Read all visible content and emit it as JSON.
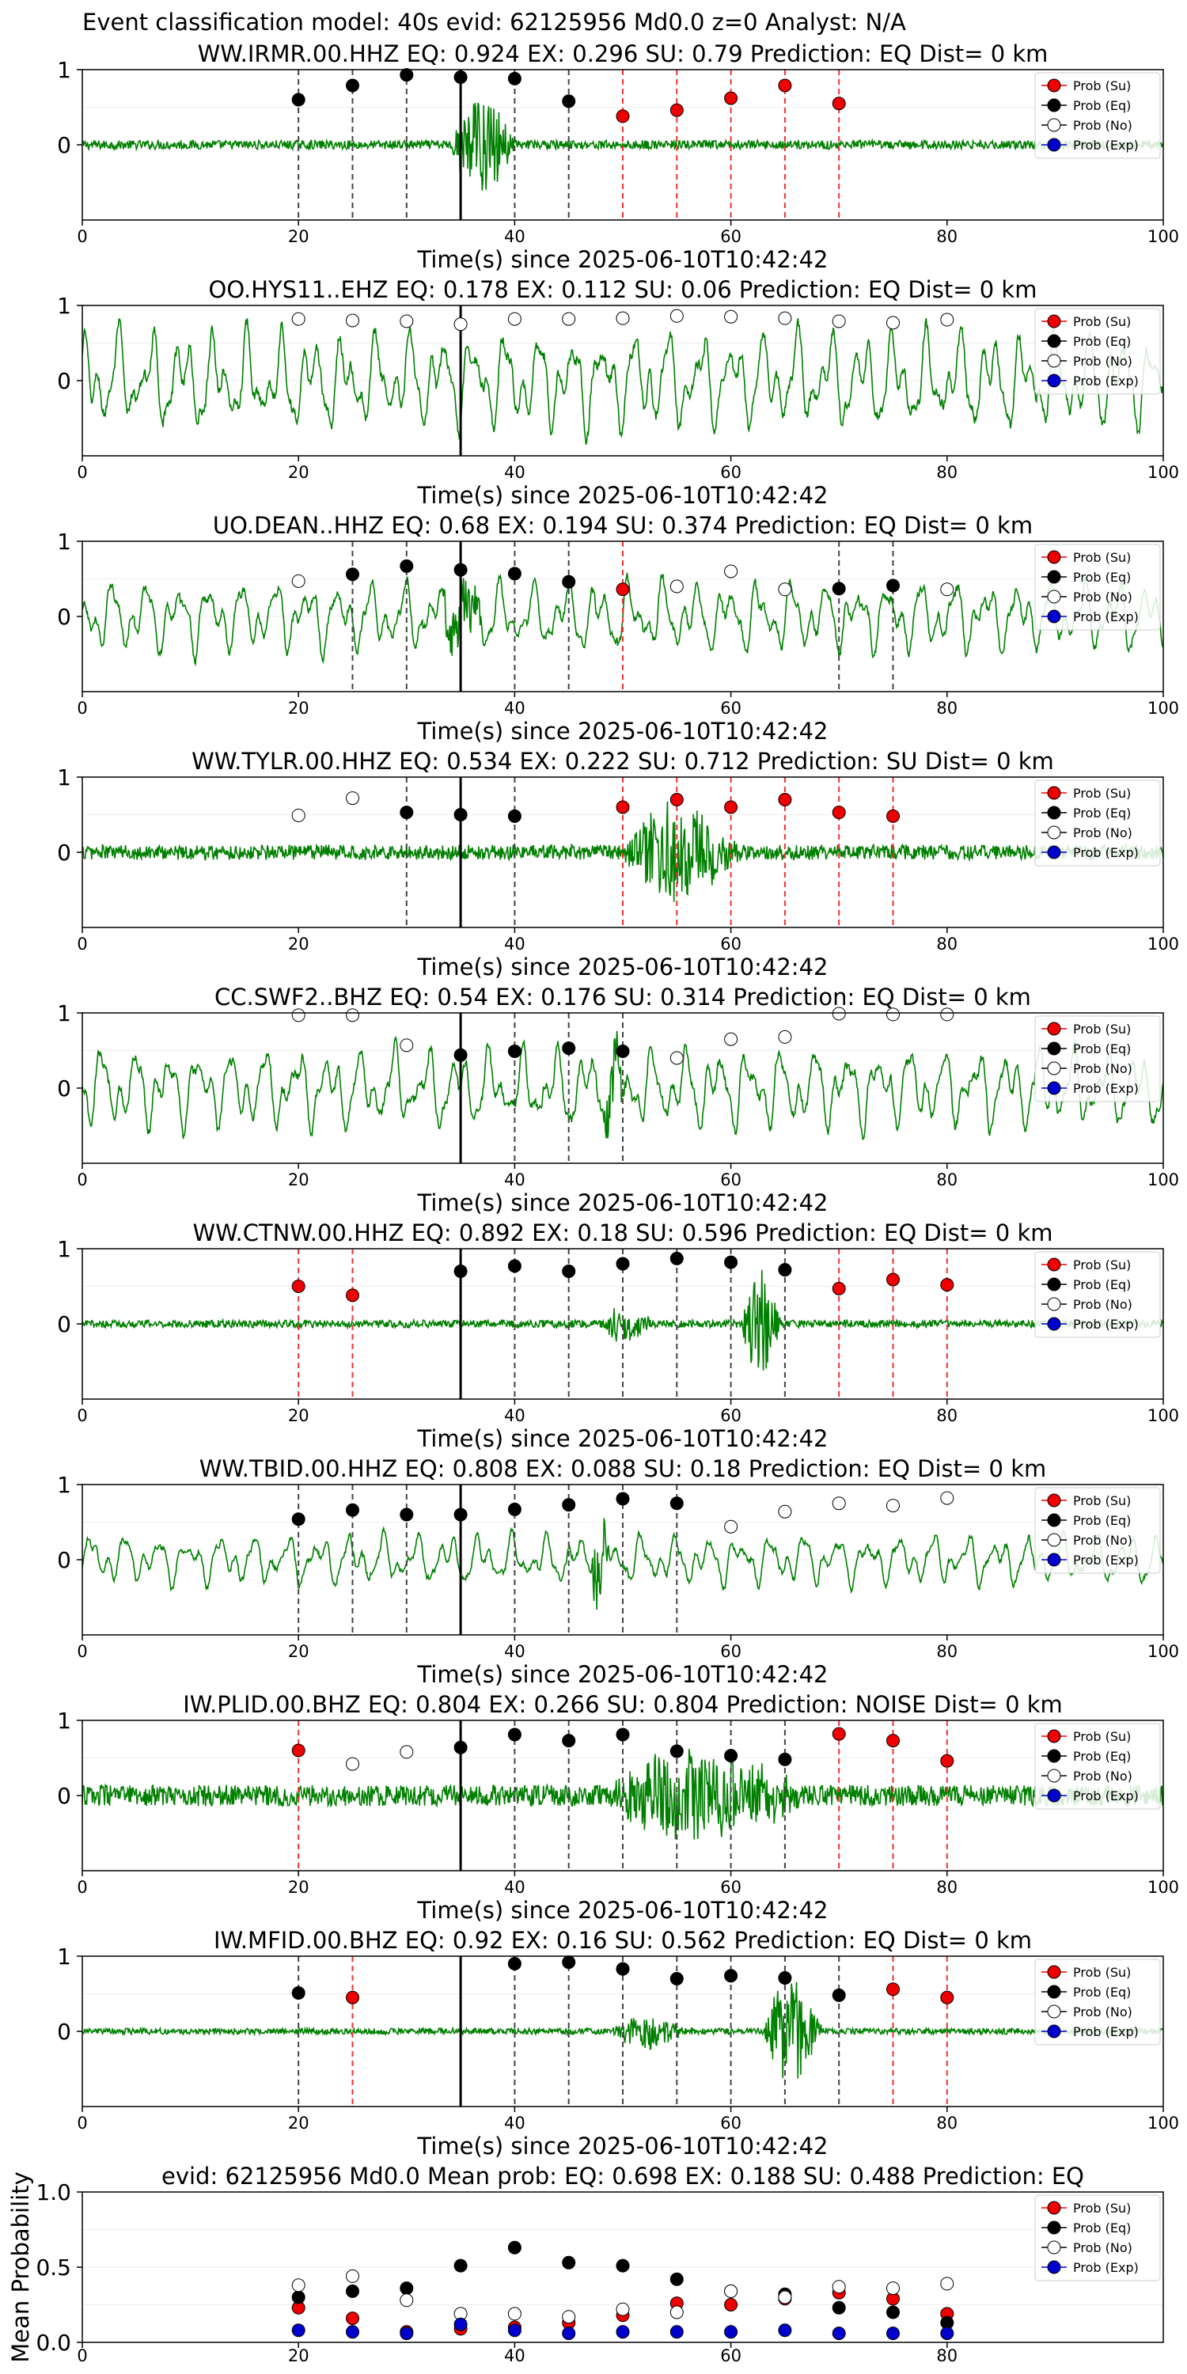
{
  "suptitle": "Event classification model: 40s evid: 62125956 Md0.0 z=0 Analyst: N/A",
  "legend_entries": [
    "Prob (Su)",
    "Prob (Eq)",
    "Prob (No)",
    "Prob (Exp)"
  ],
  "colors": {
    "su": "#ee0000",
    "eq": "#000000",
    "no": "#ffffff",
    "exp": "#0000cc",
    "trace": "#008000",
    "vline_su": "#ee3333",
    "vline_eq": "#444444"
  },
  "chart_data": [
    {
      "type": "line",
      "title": "WW.IRMR.00.HHZ   EQ: 0.924  EX: 0.296  SU: 0.79   Prediction: EQ    Dist= 0 km",
      "xlabel": "Time(s) since 2025-06-10T10:42:42",
      "xlim": [
        0,
        100
      ],
      "ylim": [
        -1,
        1
      ],
      "xticks": [
        "0",
        "20",
        "40",
        "60",
        "80",
        "100"
      ],
      "yticks": [
        "1",
        "0"
      ],
      "pick_time": 35,
      "trace_style": "quake",
      "amp": 0.06,
      "burst": [
        34,
        44,
        0.85
      ],
      "burst2": null,
      "points": [
        {
          "t": 20,
          "p": 0.6,
          "cls": "eq"
        },
        {
          "t": 25,
          "p": 0.79,
          "cls": "eq"
        },
        {
          "t": 30,
          "p": 0.93,
          "cls": "eq"
        },
        {
          "t": 35,
          "p": 0.9,
          "cls": "eq"
        },
        {
          "t": 40,
          "p": 0.88,
          "cls": "eq"
        },
        {
          "t": 45,
          "p": 0.58,
          "cls": "eq"
        },
        {
          "t": 50,
          "p": 0.38,
          "cls": "su"
        },
        {
          "t": 55,
          "p": 0.46,
          "cls": "su"
        },
        {
          "t": 60,
          "p": 0.62,
          "cls": "su"
        },
        {
          "t": 65,
          "p": 0.79,
          "cls": "su"
        },
        {
          "t": 70,
          "p": 0.55,
          "cls": "su"
        }
      ]
    },
    {
      "type": "line",
      "title": "OO.HYS11..EHZ   EQ: 0.178  EX: 0.112  SU: 0.06   Prediction: EQ    Dist= 0 km",
      "xlabel": "Time(s) since 2025-06-10T10:42:42",
      "xlim": [
        0,
        100
      ],
      "ylim": [
        -1,
        1
      ],
      "xticks": [
        "0",
        "20",
        "40",
        "60",
        "80",
        "100"
      ],
      "yticks": [
        "1",
        "0"
      ],
      "pick_time": 35,
      "trace_style": "noise",
      "amp": 0.55,
      "burst": null,
      "burst2": null,
      "points": [
        {
          "t": 20,
          "p": 0.82,
          "cls": "no"
        },
        {
          "t": 25,
          "p": 0.8,
          "cls": "no"
        },
        {
          "t": 30,
          "p": 0.79,
          "cls": "no"
        },
        {
          "t": 35,
          "p": 0.75,
          "cls": "no"
        },
        {
          "t": 40,
          "p": 0.82,
          "cls": "no"
        },
        {
          "t": 45,
          "p": 0.82,
          "cls": "no"
        },
        {
          "t": 50,
          "p": 0.83,
          "cls": "no"
        },
        {
          "t": 55,
          "p": 0.86,
          "cls": "no"
        },
        {
          "t": 60,
          "p": 0.85,
          "cls": "no"
        },
        {
          "t": 65,
          "p": 0.83,
          "cls": "no"
        },
        {
          "t": 70,
          "p": 0.79,
          "cls": "no"
        },
        {
          "t": 75,
          "p": 0.77,
          "cls": "no"
        },
        {
          "t": 80,
          "p": 0.81,
          "cls": "no"
        }
      ]
    },
    {
      "type": "line",
      "title": "UO.DEAN..HHZ   EQ: 0.68  EX: 0.194  SU: 0.374   Prediction: EQ    Dist= 0 km",
      "xlabel": "Time(s) since 2025-06-10T10:42:42",
      "xlim": [
        0,
        100
      ],
      "ylim": [
        -1,
        1
      ],
      "xticks": [
        "0",
        "20",
        "40",
        "60",
        "80",
        "100"
      ],
      "yticks": [
        "1",
        "0"
      ],
      "pick_time": 35,
      "trace_style": "noise",
      "amp": 0.4,
      "burst": [
        33,
        40,
        0.6
      ],
      "burst2": null,
      "points": [
        {
          "t": 20,
          "p": 0.47,
          "cls": "no"
        },
        {
          "t": 25,
          "p": 0.56,
          "cls": "eq"
        },
        {
          "t": 30,
          "p": 0.67,
          "cls": "eq"
        },
        {
          "t": 35,
          "p": 0.62,
          "cls": "eq"
        },
        {
          "t": 40,
          "p": 0.57,
          "cls": "eq"
        },
        {
          "t": 45,
          "p": 0.46,
          "cls": "eq"
        },
        {
          "t": 50,
          "p": 0.36,
          "cls": "su"
        },
        {
          "t": 55,
          "p": 0.4,
          "cls": "no"
        },
        {
          "t": 60,
          "p": 0.6,
          "cls": "no"
        },
        {
          "t": 65,
          "p": 0.36,
          "cls": "no"
        },
        {
          "t": 70,
          "p": 0.37,
          "cls": "eq"
        },
        {
          "t": 75,
          "p": 0.41,
          "cls": "eq"
        },
        {
          "t": 80,
          "p": 0.36,
          "cls": "no"
        }
      ]
    },
    {
      "type": "line",
      "title": "WW.TYLR.00.HHZ   EQ: 0.534  EX: 0.222  SU: 0.712   Prediction: SU    Dist= 0 km",
      "xlabel": "Time(s) since 2025-06-10T10:42:42",
      "xlim": [
        0,
        100
      ],
      "ylim": [
        -1,
        1
      ],
      "xticks": [
        "0",
        "20",
        "40",
        "60",
        "80",
        "100"
      ],
      "yticks": [
        "1",
        "0"
      ],
      "pick_time": 35,
      "trace_style": "quake",
      "amp": 0.1,
      "burst": [
        50,
        68,
        0.85
      ],
      "burst2": null,
      "points": [
        {
          "t": 20,
          "p": 0.49,
          "cls": "no"
        },
        {
          "t": 25,
          "p": 0.72,
          "cls": "no"
        },
        {
          "t": 30,
          "p": 0.53,
          "cls": "eq"
        },
        {
          "t": 35,
          "p": 0.5,
          "cls": "eq"
        },
        {
          "t": 40,
          "p": 0.48,
          "cls": "eq"
        },
        {
          "t": 50,
          "p": 0.6,
          "cls": "su"
        },
        {
          "t": 55,
          "p": 0.7,
          "cls": "su"
        },
        {
          "t": 60,
          "p": 0.6,
          "cls": "su"
        },
        {
          "t": 65,
          "p": 0.7,
          "cls": "su"
        },
        {
          "t": 70,
          "p": 0.53,
          "cls": "su"
        },
        {
          "t": 75,
          "p": 0.48,
          "cls": "su"
        }
      ]
    },
    {
      "type": "line",
      "title": "CC.SWF2..BHZ   EQ: 0.54  EX: 0.176  SU: 0.314   Prediction: EQ    Dist= 0 km",
      "xlabel": "Time(s) since 2025-06-10T10:42:42",
      "xlim": [
        0,
        100
      ],
      "ylim": [
        -1,
        1
      ],
      "xticks": [
        "0",
        "20",
        "40",
        "60",
        "80",
        "100"
      ],
      "yticks": [
        "1",
        "0"
      ],
      "pick_time": 35,
      "trace_style": "noise",
      "amp": 0.45,
      "burst": [
        48,
        52,
        0.5
      ],
      "burst2": null,
      "points": [
        {
          "t": 20,
          "p": 0.97,
          "cls": "no"
        },
        {
          "t": 25,
          "p": 0.97,
          "cls": "no"
        },
        {
          "t": 30,
          "p": 0.57,
          "cls": "no"
        },
        {
          "t": 35,
          "p": 0.44,
          "cls": "eq"
        },
        {
          "t": 40,
          "p": 0.49,
          "cls": "eq"
        },
        {
          "t": 45,
          "p": 0.53,
          "cls": "eq"
        },
        {
          "t": 50,
          "p": 0.49,
          "cls": "eq"
        },
        {
          "t": 55,
          "p": 0.4,
          "cls": "no"
        },
        {
          "t": 60,
          "p": 0.65,
          "cls": "no"
        },
        {
          "t": 65,
          "p": 0.68,
          "cls": "no"
        },
        {
          "t": 70,
          "p": 0.99,
          "cls": "no"
        },
        {
          "t": 75,
          "p": 0.98,
          "cls": "no"
        },
        {
          "t": 80,
          "p": 0.98,
          "cls": "no"
        }
      ]
    },
    {
      "type": "line",
      "title": "WW.CTNW.00.HHZ   EQ: 0.892  EX: 0.18  SU: 0.596   Prediction: EQ    Dist= 0 km",
      "xlabel": "Time(s) since 2025-06-10T10:42:42",
      "xlim": [
        0,
        100
      ],
      "ylim": [
        -1,
        1
      ],
      "xticks": [
        "0",
        "20",
        "40",
        "60",
        "80",
        "100"
      ],
      "yticks": [
        "1",
        "0"
      ],
      "pick_time": 35,
      "trace_style": "quake",
      "amp": 0.05,
      "burst": [
        48,
        56,
        0.3
      ],
      "burst2": [
        61,
        67,
        0.95
      ],
      "points": [
        {
          "t": 20,
          "p": 0.5,
          "cls": "su"
        },
        {
          "t": 25,
          "p": 0.38,
          "cls": "su"
        },
        {
          "t": 35,
          "p": 0.7,
          "cls": "eq"
        },
        {
          "t": 40,
          "p": 0.77,
          "cls": "eq"
        },
        {
          "t": 45,
          "p": 0.7,
          "cls": "eq"
        },
        {
          "t": 50,
          "p": 0.8,
          "cls": "eq"
        },
        {
          "t": 55,
          "p": 0.87,
          "cls": "eq"
        },
        {
          "t": 60,
          "p": 0.82,
          "cls": "eq"
        },
        {
          "t": 65,
          "p": 0.72,
          "cls": "eq"
        },
        {
          "t": 70,
          "p": 0.47,
          "cls": "su"
        },
        {
          "t": 75,
          "p": 0.59,
          "cls": "su"
        },
        {
          "t": 80,
          "p": 0.52,
          "cls": "su"
        }
      ]
    },
    {
      "type": "line",
      "title": "WW.TBID.00.HHZ   EQ: 0.808  EX: 0.088  SU: 0.18   Prediction: EQ    Dist= 0 km",
      "xlabel": "Time(s) since 2025-06-10T10:42:42",
      "xlim": [
        0,
        100
      ],
      "ylim": [
        -1,
        1
      ],
      "xticks": [
        "0",
        "20",
        "40",
        "60",
        "80",
        "100"
      ],
      "yticks": [
        "1",
        "0"
      ],
      "pick_time": 35,
      "trace_style": "noise",
      "amp": 0.28,
      "burst": [
        47,
        50,
        0.7
      ],
      "burst2": null,
      "points": [
        {
          "t": 20,
          "p": 0.54,
          "cls": "eq"
        },
        {
          "t": 25,
          "p": 0.66,
          "cls": "eq"
        },
        {
          "t": 30,
          "p": 0.6,
          "cls": "eq"
        },
        {
          "t": 35,
          "p": 0.6,
          "cls": "eq"
        },
        {
          "t": 40,
          "p": 0.67,
          "cls": "eq"
        },
        {
          "t": 45,
          "p": 0.73,
          "cls": "eq"
        },
        {
          "t": 50,
          "p": 0.81,
          "cls": "eq"
        },
        {
          "t": 55,
          "p": 0.75,
          "cls": "eq"
        },
        {
          "t": 60,
          "p": 0.44,
          "cls": "no"
        },
        {
          "t": 65,
          "p": 0.64,
          "cls": "no"
        },
        {
          "t": 70,
          "p": 0.75,
          "cls": "no"
        },
        {
          "t": 75,
          "p": 0.72,
          "cls": "no"
        },
        {
          "t": 80,
          "p": 0.82,
          "cls": "no"
        }
      ]
    },
    {
      "type": "line",
      "title": "IW.PLID.00.BHZ   EQ: 0.804  EX: 0.266  SU: 0.804   Prediction: NOISE    Dist= 0 km",
      "xlabel": "Time(s) since 2025-06-10T10:42:42",
      "xlim": [
        0,
        100
      ],
      "ylim": [
        -1,
        1
      ],
      "xticks": [
        "0",
        "20",
        "40",
        "60",
        "80",
        "100"
      ],
      "yticks": [
        "1",
        "0"
      ],
      "pick_time": 35,
      "trace_style": "quake",
      "amp": 0.14,
      "burst": [
        48,
        80,
        0.75
      ],
      "burst2": null,
      "points": [
        {
          "t": 20,
          "p": 0.6,
          "cls": "su"
        },
        {
          "t": 25,
          "p": 0.42,
          "cls": "no"
        },
        {
          "t": 30,
          "p": 0.58,
          "cls": "no"
        },
        {
          "t": 35,
          "p": 0.64,
          "cls": "eq"
        },
        {
          "t": 40,
          "p": 0.81,
          "cls": "eq"
        },
        {
          "t": 45,
          "p": 0.73,
          "cls": "eq"
        },
        {
          "t": 50,
          "p": 0.81,
          "cls": "eq"
        },
        {
          "t": 55,
          "p": 0.59,
          "cls": "eq"
        },
        {
          "t": 60,
          "p": 0.53,
          "cls": "eq"
        },
        {
          "t": 65,
          "p": 0.48,
          "cls": "eq"
        },
        {
          "t": 70,
          "p": 0.82,
          "cls": "su"
        },
        {
          "t": 75,
          "p": 0.73,
          "cls": "su"
        },
        {
          "t": 80,
          "p": 0.46,
          "cls": "su"
        }
      ]
    },
    {
      "type": "line",
      "title": "IW.MFID.00.BHZ   EQ: 0.92  EX: 0.16  SU: 0.562   Prediction: EQ    Dist= 0 km",
      "xlabel": "Time(s) since 2025-06-10T10:42:42",
      "xlim": [
        0,
        100
      ],
      "ylim": [
        -1,
        1
      ],
      "xticks": [
        "0",
        "20",
        "40",
        "60",
        "80",
        "100"
      ],
      "yticks": [
        "1",
        "0"
      ],
      "pick_time": 35,
      "trace_style": "quake",
      "amp": 0.04,
      "burst": [
        49,
        60,
        0.3
      ],
      "burst2": [
        63,
        72,
        0.95
      ],
      "points": [
        {
          "t": 20,
          "p": 0.51,
          "cls": "eq"
        },
        {
          "t": 25,
          "p": 0.45,
          "cls": "su"
        },
        {
          "t": 40,
          "p": 0.9,
          "cls": "eq"
        },
        {
          "t": 45,
          "p": 0.92,
          "cls": "eq"
        },
        {
          "t": 50,
          "p": 0.83,
          "cls": "eq"
        },
        {
          "t": 55,
          "p": 0.7,
          "cls": "eq"
        },
        {
          "t": 60,
          "p": 0.74,
          "cls": "eq"
        },
        {
          "t": 65,
          "p": 0.71,
          "cls": "eq"
        },
        {
          "t": 70,
          "p": 0.48,
          "cls": "eq"
        },
        {
          "t": 75,
          "p": 0.56,
          "cls": "su"
        },
        {
          "t": 80,
          "p": 0.45,
          "cls": "su"
        }
      ]
    },
    {
      "type": "scatter",
      "title": "evid: 62125956  Md0.0    Mean prob:    EQ: 0.698  EX: 0.188  SU: 0.488   Prediction: EQ",
      "ylabel": "Mean Probability",
      "xlim": [
        0,
        100
      ],
      "ylim": [
        0,
        1
      ],
      "xticks": [
        "0",
        "20",
        "40",
        "60",
        "80"
      ],
      "yticks": [
        "1.0",
        "0.5",
        "0.0"
      ],
      "x": [
        20,
        25,
        30,
        35,
        40,
        45,
        50,
        55,
        60,
        65,
        70,
        75,
        80
      ],
      "series": [
        {
          "name": "Prob (Su)",
          "cls": "su",
          "values": [
            0.23,
            0.16,
            0.07,
            0.09,
            0.1,
            0.13,
            0.18,
            0.26,
            0.25,
            0.29,
            0.33,
            0.29,
            0.19
          ]
        },
        {
          "name": "Prob (Eq)",
          "cls": "eq",
          "values": [
            0.3,
            0.34,
            0.36,
            0.51,
            0.63,
            0.53,
            0.51,
            0.42,
            0.34,
            0.32,
            0.23,
            0.2,
            0.13
          ]
        },
        {
          "name": "Prob (No)",
          "cls": "no",
          "values": [
            0.38,
            0.44,
            0.28,
            0.19,
            0.19,
            0.17,
            0.22,
            0.2,
            0.34,
            0.3,
            0.37,
            0.36,
            0.39
          ]
        },
        {
          "name": "Prob (Exp)",
          "cls": "exp",
          "values": [
            0.08,
            0.07,
            0.06,
            0.12,
            0.08,
            0.06,
            0.07,
            0.07,
            0.07,
            0.08,
            0.06,
            0.06,
            0.06
          ]
        }
      ]
    }
  ]
}
